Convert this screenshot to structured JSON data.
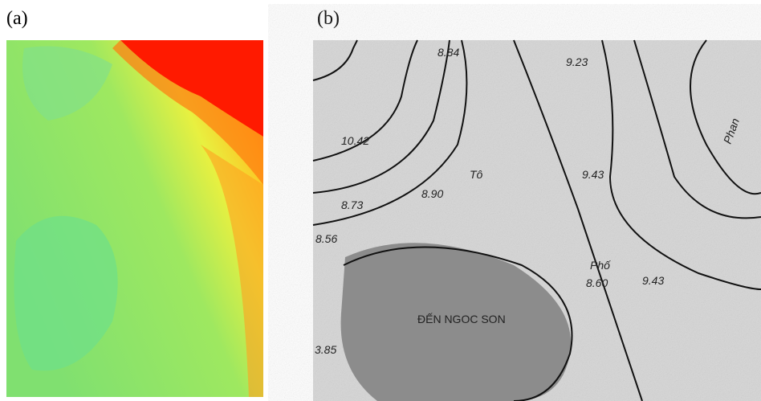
{
  "panels": [
    {
      "label": "(a)"
    },
    {
      "label": "(b)",
      "map_labels": [
        "8.84",
        "9.23",
        "10.42",
        "Tô",
        "8.90",
        "8.73",
        "8.56",
        "9.43",
        "8.60",
        "9.43",
        "ĐẾN NGOC SON",
        "Phan",
        "Phố",
        "3.85"
      ]
    }
  ]
}
